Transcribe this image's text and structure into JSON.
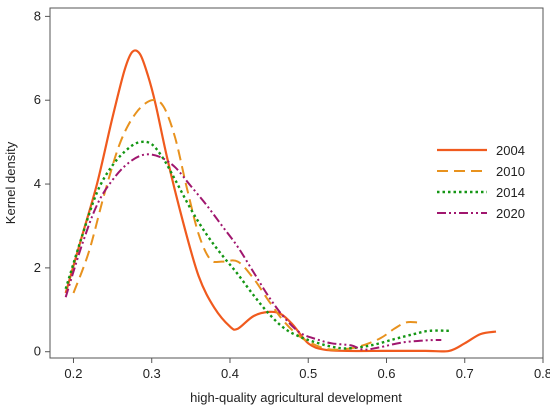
{
  "chart_data": {
    "type": "line",
    "xlabel": "high-quality agricultural development",
    "ylabel": "Kernel density",
    "xlim": [
      0.17,
      0.8
    ],
    "ylim": [
      -0.15,
      8.2
    ],
    "x_ticks": [
      "0.2",
      "0.3",
      "0.4",
      "0.5",
      "0.6",
      "0.7",
      "0.8"
    ],
    "y_ticks": [
      "0",
      "2",
      "4",
      "6",
      "8"
    ],
    "grid": false,
    "legend_position": "right",
    "series": [
      {
        "name": "2004",
        "color": "#f05a1e",
        "dash": "solid",
        "points": [
          [
            0.19,
            1.4
          ],
          [
            0.21,
            2.7
          ],
          [
            0.23,
            4.0
          ],
          [
            0.25,
            5.6
          ],
          [
            0.265,
            6.7
          ],
          [
            0.275,
            7.15
          ],
          [
            0.285,
            7.1
          ],
          [
            0.295,
            6.6
          ],
          [
            0.305,
            5.9
          ],
          [
            0.32,
            4.6
          ],
          [
            0.34,
            3.1
          ],
          [
            0.36,
            1.8
          ],
          [
            0.38,
            1.05
          ],
          [
            0.4,
            0.6
          ],
          [
            0.41,
            0.55
          ],
          [
            0.43,
            0.85
          ],
          [
            0.45,
            0.95
          ],
          [
            0.465,
            0.9
          ],
          [
            0.48,
            0.65
          ],
          [
            0.5,
            0.2
          ],
          [
            0.52,
            0.05
          ],
          [
            0.55,
            0.02
          ],
          [
            0.6,
            0.02
          ],
          [
            0.65,
            0.02
          ],
          [
            0.68,
            0.02
          ],
          [
            0.7,
            0.2
          ],
          [
            0.72,
            0.42
          ],
          [
            0.74,
            0.48
          ]
        ]
      },
      {
        "name": "2010",
        "color": "#e8921e",
        "dash": "long",
        "points": [
          [
            0.2,
            1.4
          ],
          [
            0.22,
            2.4
          ],
          [
            0.24,
            3.8
          ],
          [
            0.26,
            5.0
          ],
          [
            0.28,
            5.7
          ],
          [
            0.3,
            6.0
          ],
          [
            0.315,
            5.85
          ],
          [
            0.33,
            5.1
          ],
          [
            0.345,
            3.9
          ],
          [
            0.36,
            2.8
          ],
          [
            0.375,
            2.2
          ],
          [
            0.39,
            2.15
          ],
          [
            0.41,
            2.15
          ],
          [
            0.43,
            1.75
          ],
          [
            0.45,
            1.2
          ],
          [
            0.47,
            0.7
          ],
          [
            0.49,
            0.35
          ],
          [
            0.51,
            0.15
          ],
          [
            0.53,
            0.05
          ],
          [
            0.56,
            0.1
          ],
          [
            0.59,
            0.3
          ],
          [
            0.61,
            0.55
          ],
          [
            0.625,
            0.7
          ],
          [
            0.64,
            0.7
          ]
        ]
      },
      {
        "name": "2014",
        "color": "#149614",
        "dash": "dotted",
        "points": [
          [
            0.19,
            1.5
          ],
          [
            0.21,
            2.7
          ],
          [
            0.23,
            3.8
          ],
          [
            0.25,
            4.45
          ],
          [
            0.27,
            4.85
          ],
          [
            0.285,
            5.0
          ],
          [
            0.3,
            4.95
          ],
          [
            0.315,
            4.6
          ],
          [
            0.33,
            4.1
          ],
          [
            0.35,
            3.4
          ],
          [
            0.37,
            2.8
          ],
          [
            0.39,
            2.3
          ],
          [
            0.41,
            1.85
          ],
          [
            0.43,
            1.35
          ],
          [
            0.45,
            0.9
          ],
          [
            0.47,
            0.55
          ],
          [
            0.49,
            0.35
          ],
          [
            0.51,
            0.22
          ],
          [
            0.53,
            0.12
          ],
          [
            0.55,
            0.08
          ],
          [
            0.58,
            0.15
          ],
          [
            0.61,
            0.3
          ],
          [
            0.635,
            0.42
          ],
          [
            0.655,
            0.5
          ],
          [
            0.68,
            0.5
          ]
        ]
      },
      {
        "name": "2020",
        "color": "#a0166e",
        "dash": "dashdot",
        "points": [
          [
            0.19,
            1.3
          ],
          [
            0.21,
            2.5
          ],
          [
            0.23,
            3.5
          ],
          [
            0.25,
            4.1
          ],
          [
            0.27,
            4.5
          ],
          [
            0.29,
            4.7
          ],
          [
            0.31,
            4.65
          ],
          [
            0.33,
            4.4
          ],
          [
            0.35,
            3.95
          ],
          [
            0.37,
            3.5
          ],
          [
            0.39,
            3.0
          ],
          [
            0.41,
            2.5
          ],
          [
            0.43,
            1.9
          ],
          [
            0.45,
            1.3
          ],
          [
            0.47,
            0.8
          ],
          [
            0.49,
            0.45
          ],
          [
            0.51,
            0.3
          ],
          [
            0.53,
            0.2
          ],
          [
            0.555,
            0.15
          ],
          [
            0.57,
            0.05
          ],
          [
            0.59,
            0.1
          ],
          [
            0.62,
            0.22
          ],
          [
            0.65,
            0.27
          ],
          [
            0.67,
            0.28
          ]
        ]
      }
    ]
  }
}
